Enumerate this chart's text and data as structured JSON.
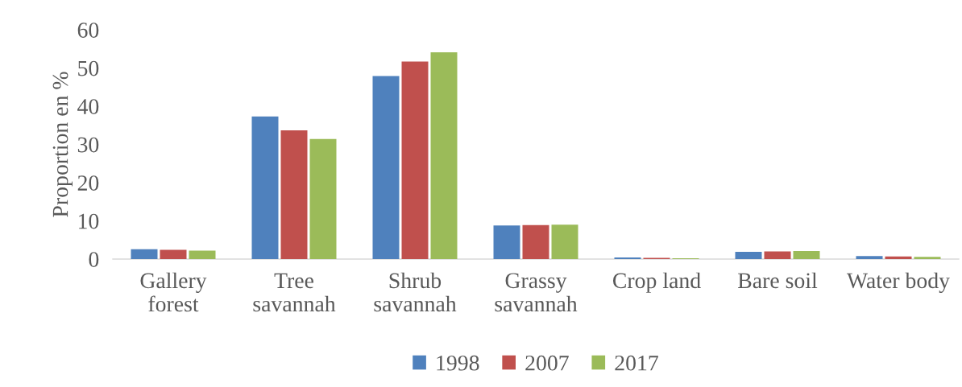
{
  "chart_data": {
    "type": "bar",
    "ylabel": "Proportion en %",
    "categories": [
      "Gallery\nforest",
      "Tree\nsavannah",
      "Shrub\nsavannah",
      "Grassy\nsavannah",
      "Crop land",
      "Bare soil",
      "Water body"
    ],
    "series": [
      {
        "name": "1998",
        "color": "#4f81bd",
        "values": [
          2.6,
          37.3,
          47.9,
          8.8,
          0.4,
          1.9,
          0.8
        ]
      },
      {
        "name": "2007",
        "color": "#c0504d",
        "values": [
          2.4,
          33.7,
          51.7,
          8.9,
          0.3,
          2.0,
          0.7
        ]
      },
      {
        "name": "2017",
        "color": "#9bbb59",
        "values": [
          2.2,
          31.4,
          54.1,
          9.0,
          0.2,
          2.1,
          0.6
        ]
      }
    ],
    "ylim": [
      0,
      60
    ],
    "yticks": [
      0,
      10,
      20,
      30,
      40,
      50,
      60
    ],
    "grid": false,
    "legend": "bottom"
  }
}
